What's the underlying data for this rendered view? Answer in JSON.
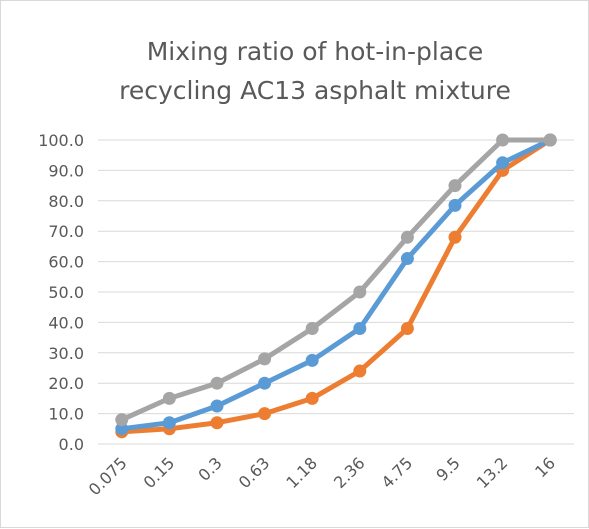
{
  "chart_data": {
    "type": "line",
    "title_lines": [
      "Mixing ratio of hot-in-place",
      "recycling AC13 asphalt mixture"
    ],
    "categories": [
      "0.075",
      "0.15",
      "0.3",
      "0.63",
      "1.18",
      "2.36",
      "4.75",
      "9.5",
      "13.2",
      "16"
    ],
    "series": [
      {
        "color": "#ed7d31",
        "values": [
          4,
          5,
          7,
          10,
          15,
          24,
          38,
          68,
          90,
          100
        ]
      },
      {
        "color": "#5b9bd5",
        "values": [
          5,
          7,
          12.5,
          20,
          27.5,
          38,
          61,
          78.5,
          92.5,
          100
        ]
      },
      {
        "color": "#a5a5a5",
        "values": [
          8,
          15,
          20,
          28,
          38,
          50,
          68,
          85,
          100,
          100
        ]
      }
    ],
    "ylim": [
      0,
      100
    ],
    "yticks": [
      "0.0",
      "10.0",
      "20.0",
      "30.0",
      "40.0",
      "50.0",
      "60.0",
      "70.0",
      "80.0",
      "90.0",
      "100.0"
    ],
    "xlabel": "",
    "ylabel": "",
    "grid": true,
    "legend": "none"
  }
}
